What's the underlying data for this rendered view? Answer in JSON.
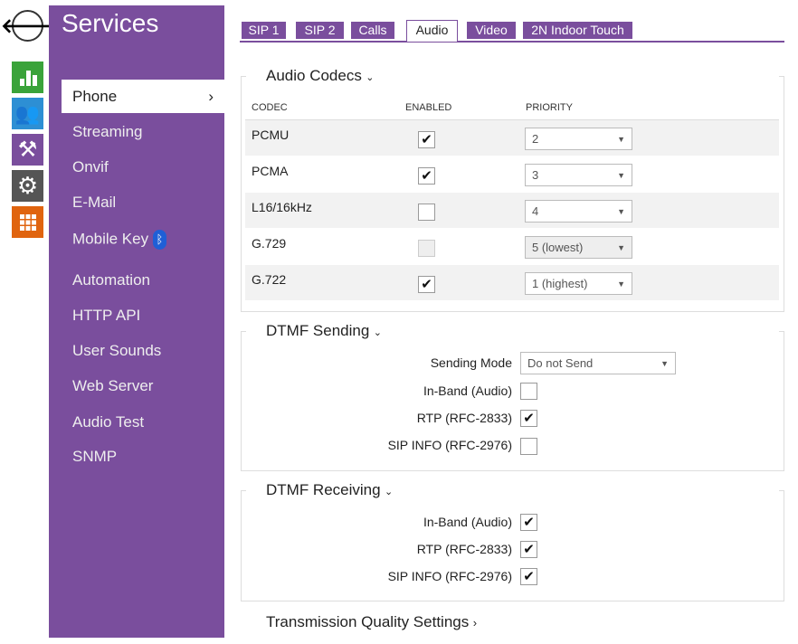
{
  "nav_icons": [
    "back-arrow-icon",
    "status-chart-icon",
    "users-icon",
    "tools-icon",
    "settings-gear-icon",
    "services-grid-icon"
  ],
  "colors": {
    "purple": "#7a4e9d",
    "green": "#3aa33a",
    "blue": "#2d8fd4",
    "dark": "#555555",
    "orange": "#e0640f"
  },
  "sidebar": {
    "title": "Services",
    "items": [
      "Phone",
      "Streaming",
      "Onvif",
      "E-Mail",
      "Mobile Key",
      "Automation",
      "HTTP API",
      "User Sounds",
      "Web Server",
      "Audio Test",
      "SNMP"
    ],
    "active_chevron": "›"
  },
  "tabs": [
    "SIP 1",
    "SIP 2",
    "Calls",
    "Audio",
    "Video",
    "2N Indoor Touch"
  ],
  "codecs": {
    "title": "Audio Codecs",
    "headers": [
      "CODEC",
      "ENABLED",
      "PRIORITY"
    ],
    "rows": [
      {
        "codec": "PCMU",
        "enabled": true,
        "priority": "2",
        "disabled": false
      },
      {
        "codec": "PCMA",
        "enabled": true,
        "priority": "3",
        "disabled": false
      },
      {
        "codec": "L16/16kHz",
        "enabled": false,
        "priority": "4",
        "disabled": false
      },
      {
        "codec": "G.729",
        "enabled": false,
        "priority": "5 (lowest)",
        "disabled": true
      },
      {
        "codec": "G.722",
        "enabled": true,
        "priority": "1 (highest)",
        "disabled": false
      }
    ]
  },
  "dtmf_sending": {
    "title": "DTMF Sending",
    "mode_label": "Sending Mode",
    "mode_value": "Do not Send",
    "inband_label": "In-Band (Audio)",
    "inband": false,
    "rtp_label": "RTP (RFC-2833)",
    "rtp": true,
    "sipinfo_label": "SIP INFO (RFC-2976)",
    "sipinfo": false
  },
  "dtmf_receiving": {
    "title": "DTMF Receiving",
    "inband_label": "In-Band (Audio)",
    "inband": true,
    "rtp_label": "RTP (RFC-2833)",
    "rtp": true,
    "sipinfo_label": "SIP INFO (RFC-2976)",
    "sipinfo": true
  },
  "transmission": {
    "title": "Transmission Quality Settings"
  }
}
